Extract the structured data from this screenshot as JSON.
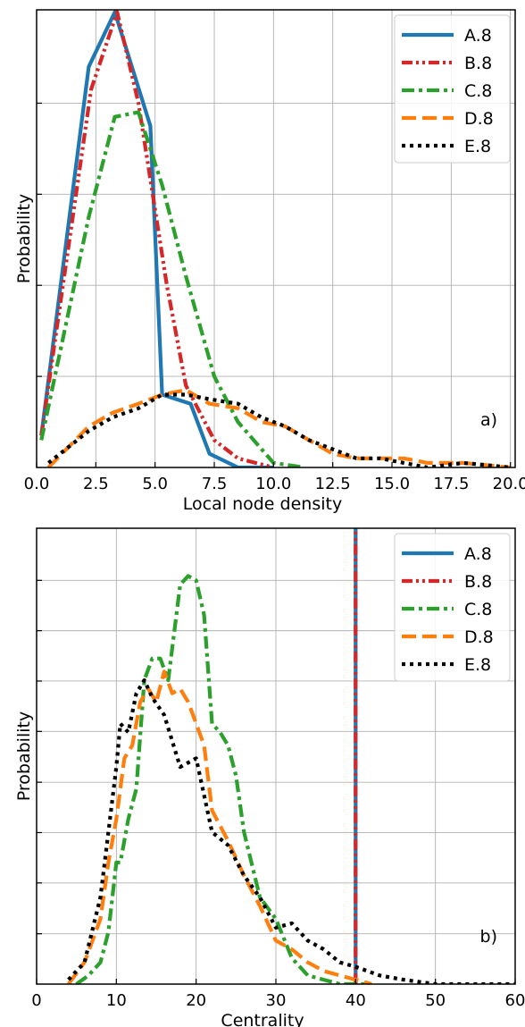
{
  "chart_data": [
    {
      "type": "line",
      "panel_label": "a)",
      "xlabel": "Local node density",
      "ylabel": "Probability",
      "xlim": [
        0,
        20.2
      ],
      "ylim": [
        0,
        1.005
      ],
      "xticks": [
        0.0,
        2.5,
        5.0,
        7.5,
        10.0,
        12.5,
        15.0,
        17.5,
        20.0
      ],
      "xtick_labels": [
        "0.0",
        "2.5",
        "5.0",
        "7.5",
        "10.0",
        "12.5",
        "15.0",
        "17.5",
        "20.0"
      ],
      "ygrid": [
        0.2,
        0.4,
        0.6,
        0.8
      ],
      "grid": true,
      "legend_position": "top-right",
      "series": [
        {
          "name": "A.8",
          "color": "#1f77b4",
          "style": "solid",
          "x": [
            0.2,
            2.2,
            3.3,
            4.8,
            5.3,
            6.5,
            7.3,
            8.5,
            10.0
          ],
          "y": [
            0.07,
            0.88,
            1.0,
            0.75,
            0.16,
            0.14,
            0.03,
            0.0,
            0.0
          ]
        },
        {
          "name": "B.8",
          "color": "#d62728",
          "style": "dashdotdot",
          "x": [
            0.2,
            2.3,
            3.4,
            4.3,
            5.5,
            6.3,
            7.5,
            8.5,
            10.0
          ],
          "y": [
            0.07,
            0.83,
            1.0,
            0.8,
            0.4,
            0.18,
            0.06,
            0.02,
            0.0
          ]
        },
        {
          "name": "C.8",
          "color": "#2ca02c",
          "style": "dashdot",
          "x": [
            0.2,
            2.2,
            3.3,
            4.3,
            5.3,
            6.3,
            7.5,
            8.5,
            10.0,
            11.3
          ],
          "y": [
            0.06,
            0.55,
            0.77,
            0.78,
            0.62,
            0.42,
            0.2,
            0.1,
            0.01,
            0.0
          ]
        },
        {
          "name": "D.8",
          "color": "#ff7f0e",
          "style": "dashed",
          "x": [
            0.5,
            2.2,
            3.2,
            4.3,
            5.3,
            6.3,
            7.3,
            8.5,
            9.5,
            10.5,
            11.5,
            12.5,
            13.5,
            14.5,
            15.5,
            16.5,
            18.0,
            20.0
          ],
          "y": [
            0.0,
            0.09,
            0.12,
            0.14,
            0.16,
            0.17,
            0.14,
            0.13,
            0.1,
            0.09,
            0.06,
            0.03,
            0.02,
            0.02,
            0.02,
            0.01,
            0.01,
            0.0
          ]
        },
        {
          "name": "E.8",
          "color": "#000000",
          "style": "dotted",
          "x": [
            0.5,
            2.2,
            3.2,
            4.3,
            5.3,
            6.3,
            7.3,
            8.5,
            9.5,
            10.5,
            11.5,
            12.5,
            13.5,
            14.5,
            15.5,
            16.5,
            18.0,
            20.0
          ],
          "y": [
            0.01,
            0.08,
            0.11,
            0.13,
            0.16,
            0.16,
            0.15,
            0.14,
            0.11,
            0.09,
            0.06,
            0.04,
            0.02,
            0.02,
            0.01,
            0.0,
            0.01,
            0.0
          ]
        }
      ]
    },
    {
      "type": "line",
      "panel_label": "b)",
      "xlabel": "Centrality",
      "ylabel": "Probability",
      "xlim": [
        0,
        60
      ],
      "ylim": [
        0,
        1.05
      ],
      "xticks": [
        0,
        10,
        20,
        30,
        40,
        50,
        60
      ],
      "xtick_labels": [
        "0",
        "10",
        "20",
        "30",
        "40",
        "50",
        "60"
      ],
      "ygrid": [
        0.116,
        0.233,
        0.349,
        0.465,
        0.582,
        0.698,
        0.814,
        0.93
      ],
      "grid": true,
      "legend_position": "top-right",
      "series": [
        {
          "name": "A.8",
          "color": "#1f77b4",
          "style": "solid",
          "x": [
            40,
            40
          ],
          "y": [
            0,
            1.05
          ]
        },
        {
          "name": "B.8",
          "color": "#d62728",
          "style": "dashdotdot",
          "x": [
            40,
            40
          ],
          "y": [
            0,
            1.05
          ]
        },
        {
          "name": "C.8",
          "color": "#2ca02c",
          "style": "dashdot",
          "x": [
            5,
            6.5,
            8,
            9,
            10,
            10.5,
            11.5,
            12.5,
            13.5,
            14.5,
            15.5,
            16.5,
            18,
            19,
            20,
            21,
            22,
            23,
            24,
            25,
            26,
            28,
            30,
            32,
            34,
            36,
            38,
            40,
            42
          ],
          "y": [
            0.0,
            0.02,
            0.05,
            0.12,
            0.28,
            0.28,
            0.38,
            0.45,
            0.7,
            0.75,
            0.75,
            0.7,
            0.92,
            0.94,
            0.93,
            0.85,
            0.6,
            0.58,
            0.55,
            0.48,
            0.35,
            0.2,
            0.15,
            0.06,
            0.02,
            0.01,
            0.0,
            0.0,
            0.0
          ]
        },
        {
          "name": "D.8",
          "color": "#ff7f0e",
          "style": "dashed",
          "x": [
            4,
            6,
            8,
            9,
            10,
            11,
            12,
            13,
            14,
            15,
            16,
            17,
            18,
            19,
            20,
            21,
            22,
            24,
            26,
            28,
            30,
            32,
            34,
            36,
            38,
            40,
            42
          ],
          "y": [
            0.0,
            0.05,
            0.15,
            0.28,
            0.38,
            0.52,
            0.55,
            0.65,
            0.68,
            0.65,
            0.72,
            0.67,
            0.68,
            0.65,
            0.6,
            0.55,
            0.4,
            0.33,
            0.25,
            0.18,
            0.1,
            0.08,
            0.05,
            0.03,
            0.02,
            0.01,
            0.0
          ]
        },
        {
          "name": "E.8",
          "color": "#000000",
          "style": "dotted",
          "x": [
            4,
            6,
            8,
            9,
            10,
            10.5,
            11.5,
            12.5,
            13.5,
            14.5,
            16,
            18,
            20,
            22,
            24,
            26,
            28,
            30,
            32,
            34,
            36,
            38,
            40,
            43,
            46,
            50,
            55,
            60
          ],
          "y": [
            0.01,
            0.05,
            0.2,
            0.35,
            0.5,
            0.6,
            0.58,
            0.67,
            0.7,
            0.66,
            0.62,
            0.5,
            0.52,
            0.35,
            0.32,
            0.25,
            0.2,
            0.13,
            0.14,
            0.1,
            0.08,
            0.05,
            0.04,
            0.02,
            0.01,
            0.0,
            0.0,
            0.0
          ]
        }
      ]
    }
  ]
}
